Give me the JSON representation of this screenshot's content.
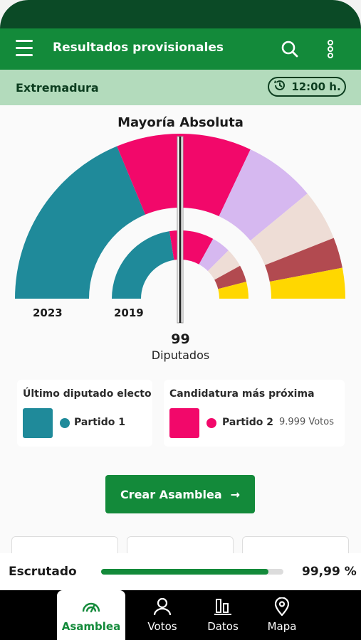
{
  "header": {
    "title": "Resultados provisionales"
  },
  "subheader": {
    "region": "Extremadura",
    "time": "12:00 h."
  },
  "chart": {
    "title": "Mayoría Absoluta",
    "year_outer": "2023",
    "year_inner": "2019",
    "majority_seats": "99",
    "seats_label": "Diputados"
  },
  "chart_data": [
    {
      "type": "pie",
      "title": "2023",
      "series": [
        {
          "color": "#1f8a9a",
          "value": 0.375
        },
        {
          "color": "#f2086a",
          "value": 0.125
        },
        {
          "color": "#f2086a",
          "value": 0.14
        },
        {
          "color": "#d6b8f0",
          "value": 0.14
        },
        {
          "color": "#eeddd6",
          "value": 0.1
        },
        {
          "color": "#b24a50",
          "value": 0.06
        },
        {
          "color": "#ffd700",
          "value": 0.06
        }
      ]
    },
    {
      "type": "pie",
      "title": "2019",
      "series": [
        {
          "color": "#1f8a9a",
          "value": 0.45
        },
        {
          "color": "#f2086a",
          "value": 0.05
        },
        {
          "color": "#f2086a",
          "value": 0.16
        },
        {
          "color": "#d6b8f0",
          "value": 0.09
        },
        {
          "color": "#eeddd6",
          "value": 0.09
        },
        {
          "color": "#b24a50",
          "value": 0.08
        },
        {
          "color": "#ffd700",
          "value": 0.08
        }
      ]
    }
  ],
  "last_elected": {
    "title": "Último diputado electo",
    "party": "Partido 1",
    "color": "#1f8a9a"
  },
  "closest": {
    "title": "Candidatura más próxima",
    "party": "Partido 2",
    "votes": "9.999 Votos",
    "color": "#f2086a"
  },
  "actions": {
    "create_label": "Crear Asamblea",
    "arrow": "→"
  },
  "scrutiny": {
    "label": "Escrutado",
    "value": "99,99 %",
    "progress": 0.9999
  },
  "nav": [
    {
      "label": "Asamblea",
      "icon": "gauge-icon"
    },
    {
      "label": "Votos",
      "icon": "user-icon"
    },
    {
      "label": "Datos",
      "icon": "bar-chart-icon"
    },
    {
      "label": "Mapa",
      "icon": "map-pin-icon"
    }
  ]
}
